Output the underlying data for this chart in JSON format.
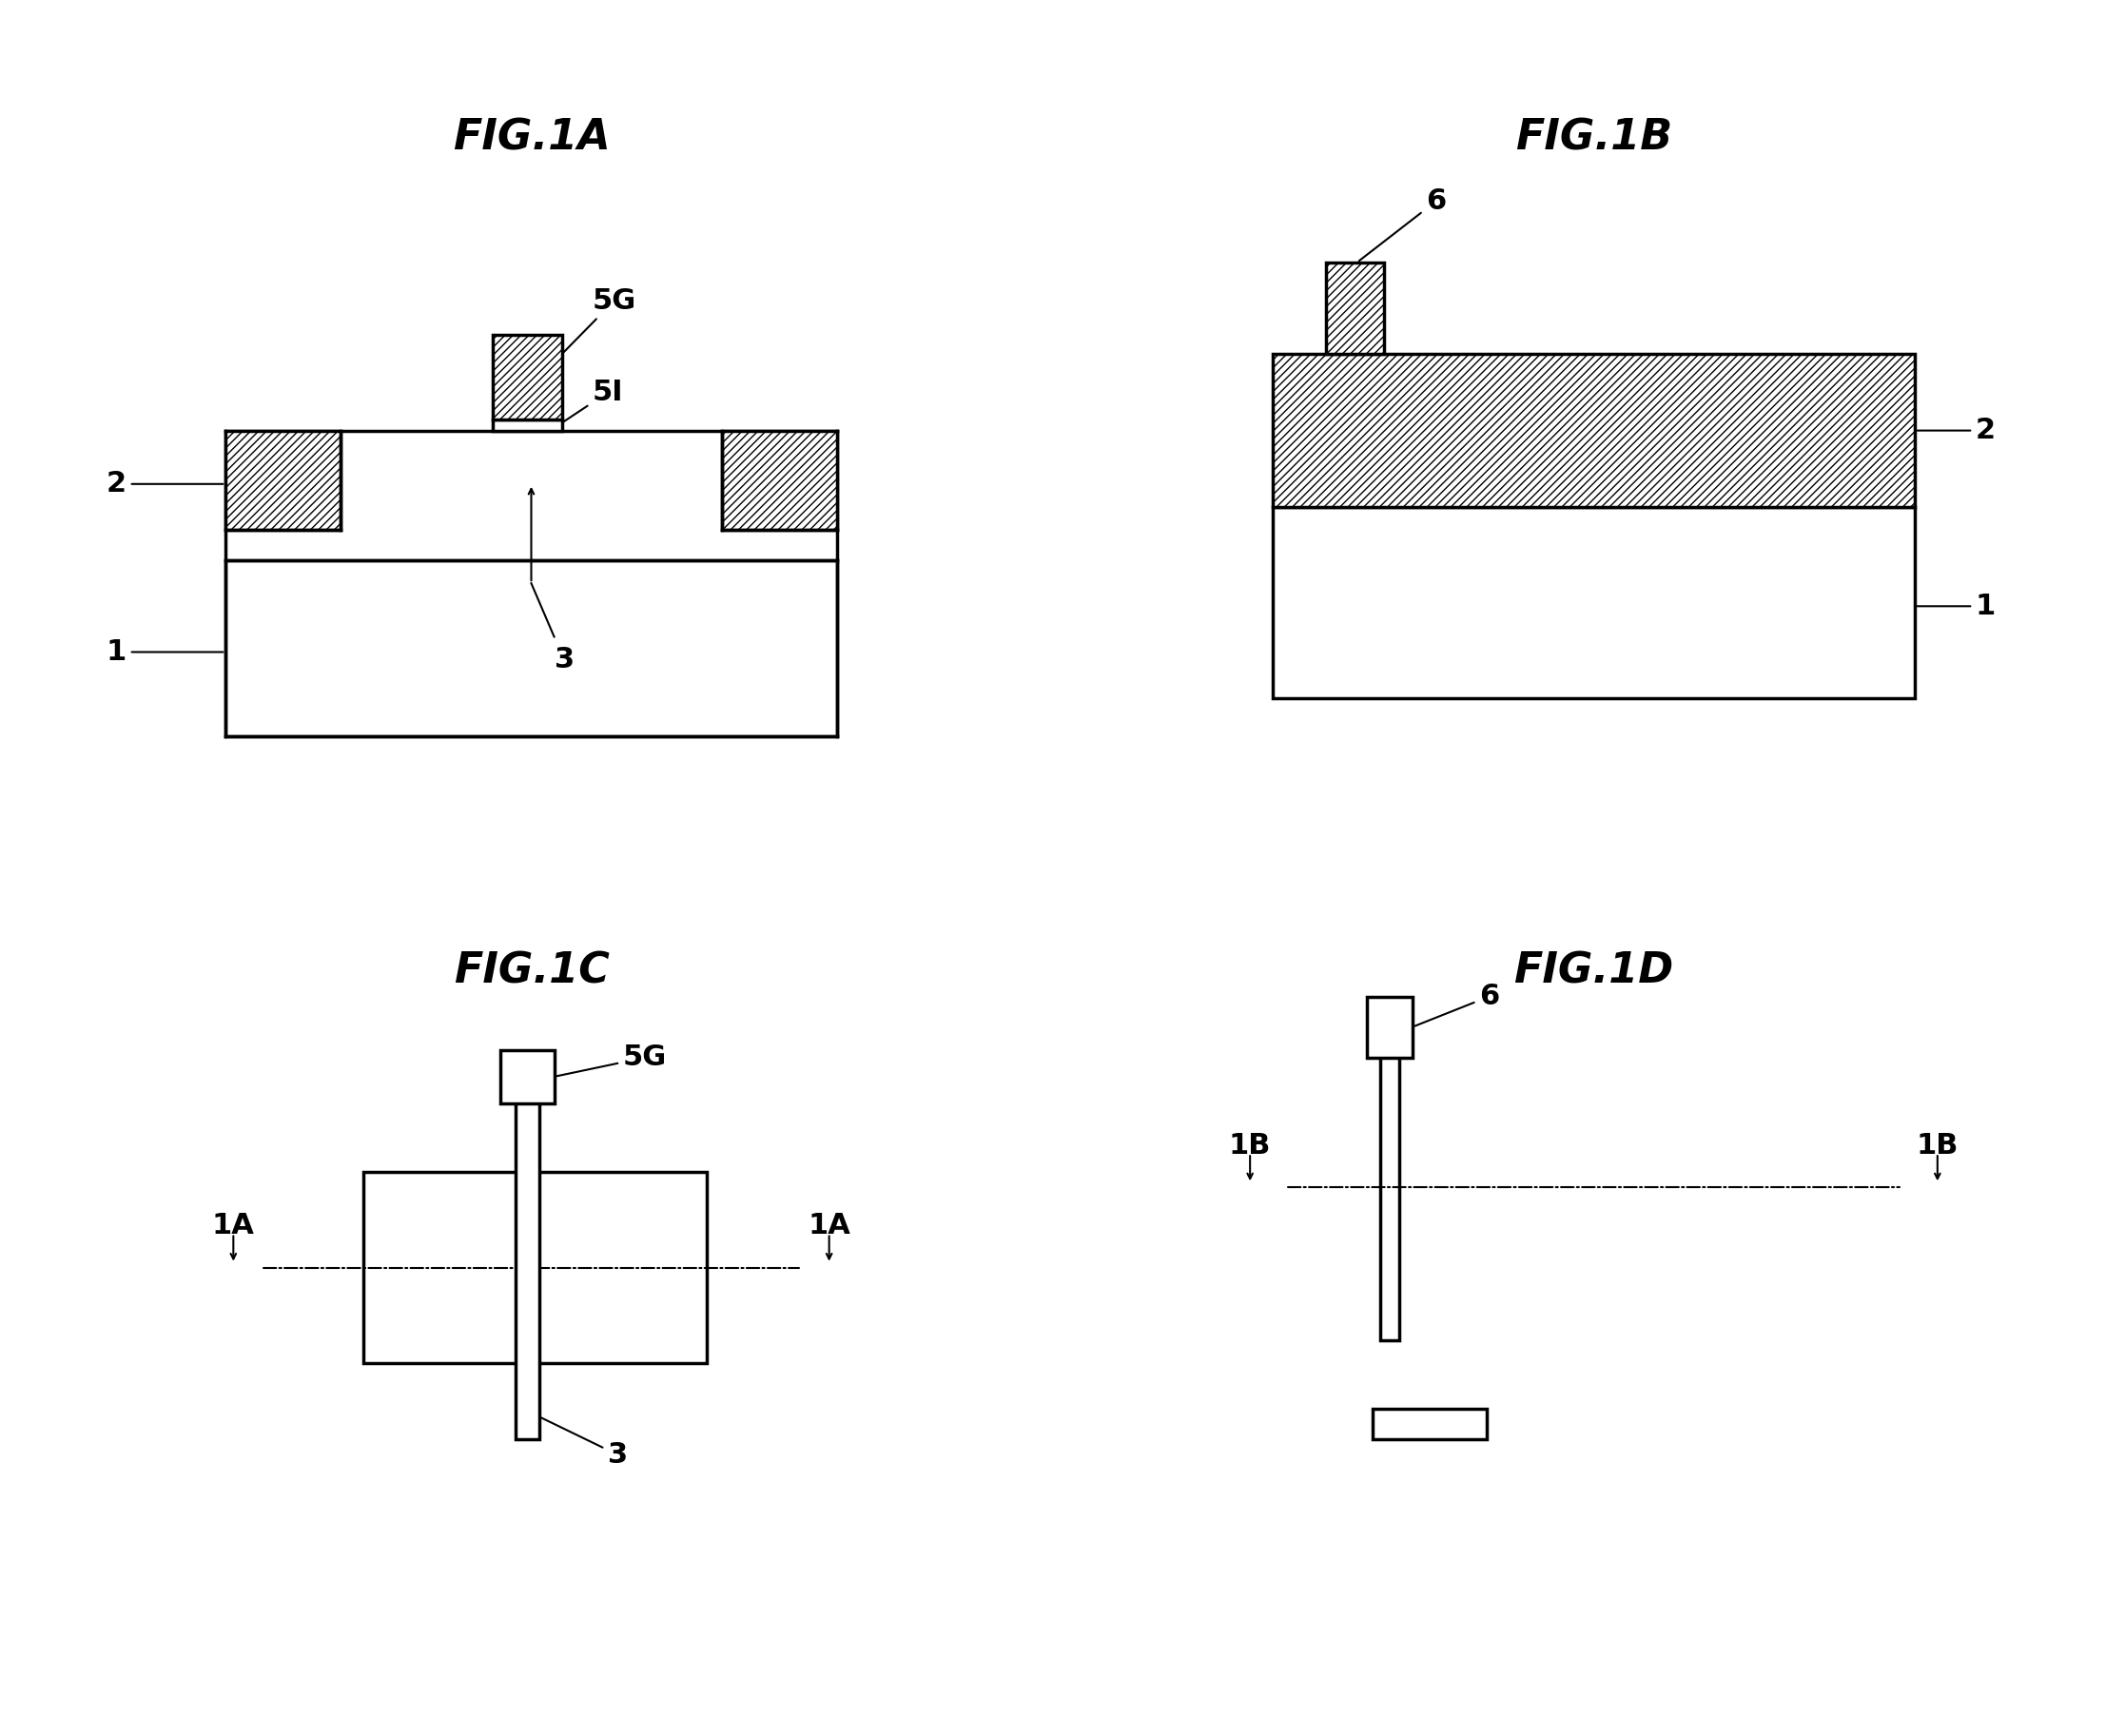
{
  "bg_color": "#ffffff",
  "lc": "#000000",
  "lw": 2.5,
  "lw_thin": 1.5,
  "tfs": 32,
  "fs": 22,
  "fig1a": "FIG.1A",
  "fig1b": "FIG.1B",
  "fig1c": "FIG.1C",
  "fig1d": "FIG.1D"
}
